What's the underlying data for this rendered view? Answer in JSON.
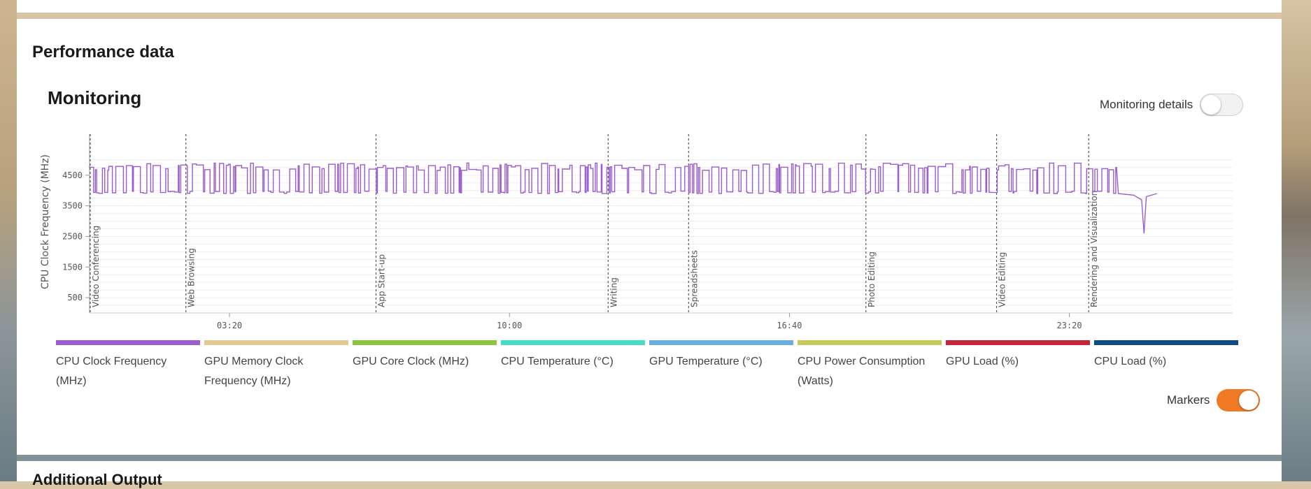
{
  "page": {
    "section_title": "Performance data",
    "monitoring_title": "Monitoring",
    "monitoring_details_label": "Monitoring details",
    "markers_label": "Markers",
    "next_section_title": "Additional Output"
  },
  "colors": {
    "accent_toggle": "#f07a24",
    "cpu_line": "#9a5ccf"
  },
  "chart_data": {
    "type": "line",
    "ylabel": "CPU Clock Frequency (MHz)",
    "yticks": [
      500,
      1500,
      2500,
      3500,
      4500
    ],
    "ylim": [
      0,
      5500
    ],
    "xlim": [
      0,
      28800
    ],
    "xticks": [
      {
        "t": 12000,
        "label": "03:20"
      },
      {
        "t": 36000,
        "label": "10:00"
      },
      {
        "t": 60000,
        "label": "16:40"
      },
      {
        "t": 84000,
        "label": "23:20"
      }
    ],
    "markers": [
      {
        "t": 0,
        "label": "Video Conferencing"
      },
      {
        "t": 8200,
        "label": "Web Browsing"
      },
      {
        "t": 24500,
        "label": "App Start-up"
      },
      {
        "t": 44400,
        "label": "Writing"
      },
      {
        "t": 51300,
        "label": "Spreadsheets"
      },
      {
        "t": 66500,
        "label": "Photo Editing"
      },
      {
        "t": 77700,
        "label": "Video Editing"
      },
      {
        "t": 85600,
        "label": "Rendering and Visualization"
      }
    ],
    "series": [
      {
        "name": "CPU Clock Frequency (MHz)",
        "color": "#9a5ccf",
        "shown": true,
        "high": 4900,
        "low": 3900,
        "end_t": 91500
      },
      {
        "name": "GPU Memory Clock Frequency (MHz)",
        "color": "#e2c98f",
        "shown": false
      },
      {
        "name": "GPU Core Clock (MHz)",
        "color": "#8cc43f",
        "shown": false
      },
      {
        "name": "CPU Temperature (°C)",
        "color": "#46dcc0",
        "shown": false
      },
      {
        "name": "GPU Temperature (°C)",
        "color": "#6aaede",
        "shown": false
      },
      {
        "name": "CPU Power Consumption (Watts)",
        "color": "#c9c85a",
        "shown": false
      },
      {
        "name": "GPU Load (%)",
        "color": "#c8233c",
        "shown": false
      },
      {
        "name": "CPU Load (%)",
        "color": "#0f4b86",
        "shown": false
      }
    ]
  }
}
